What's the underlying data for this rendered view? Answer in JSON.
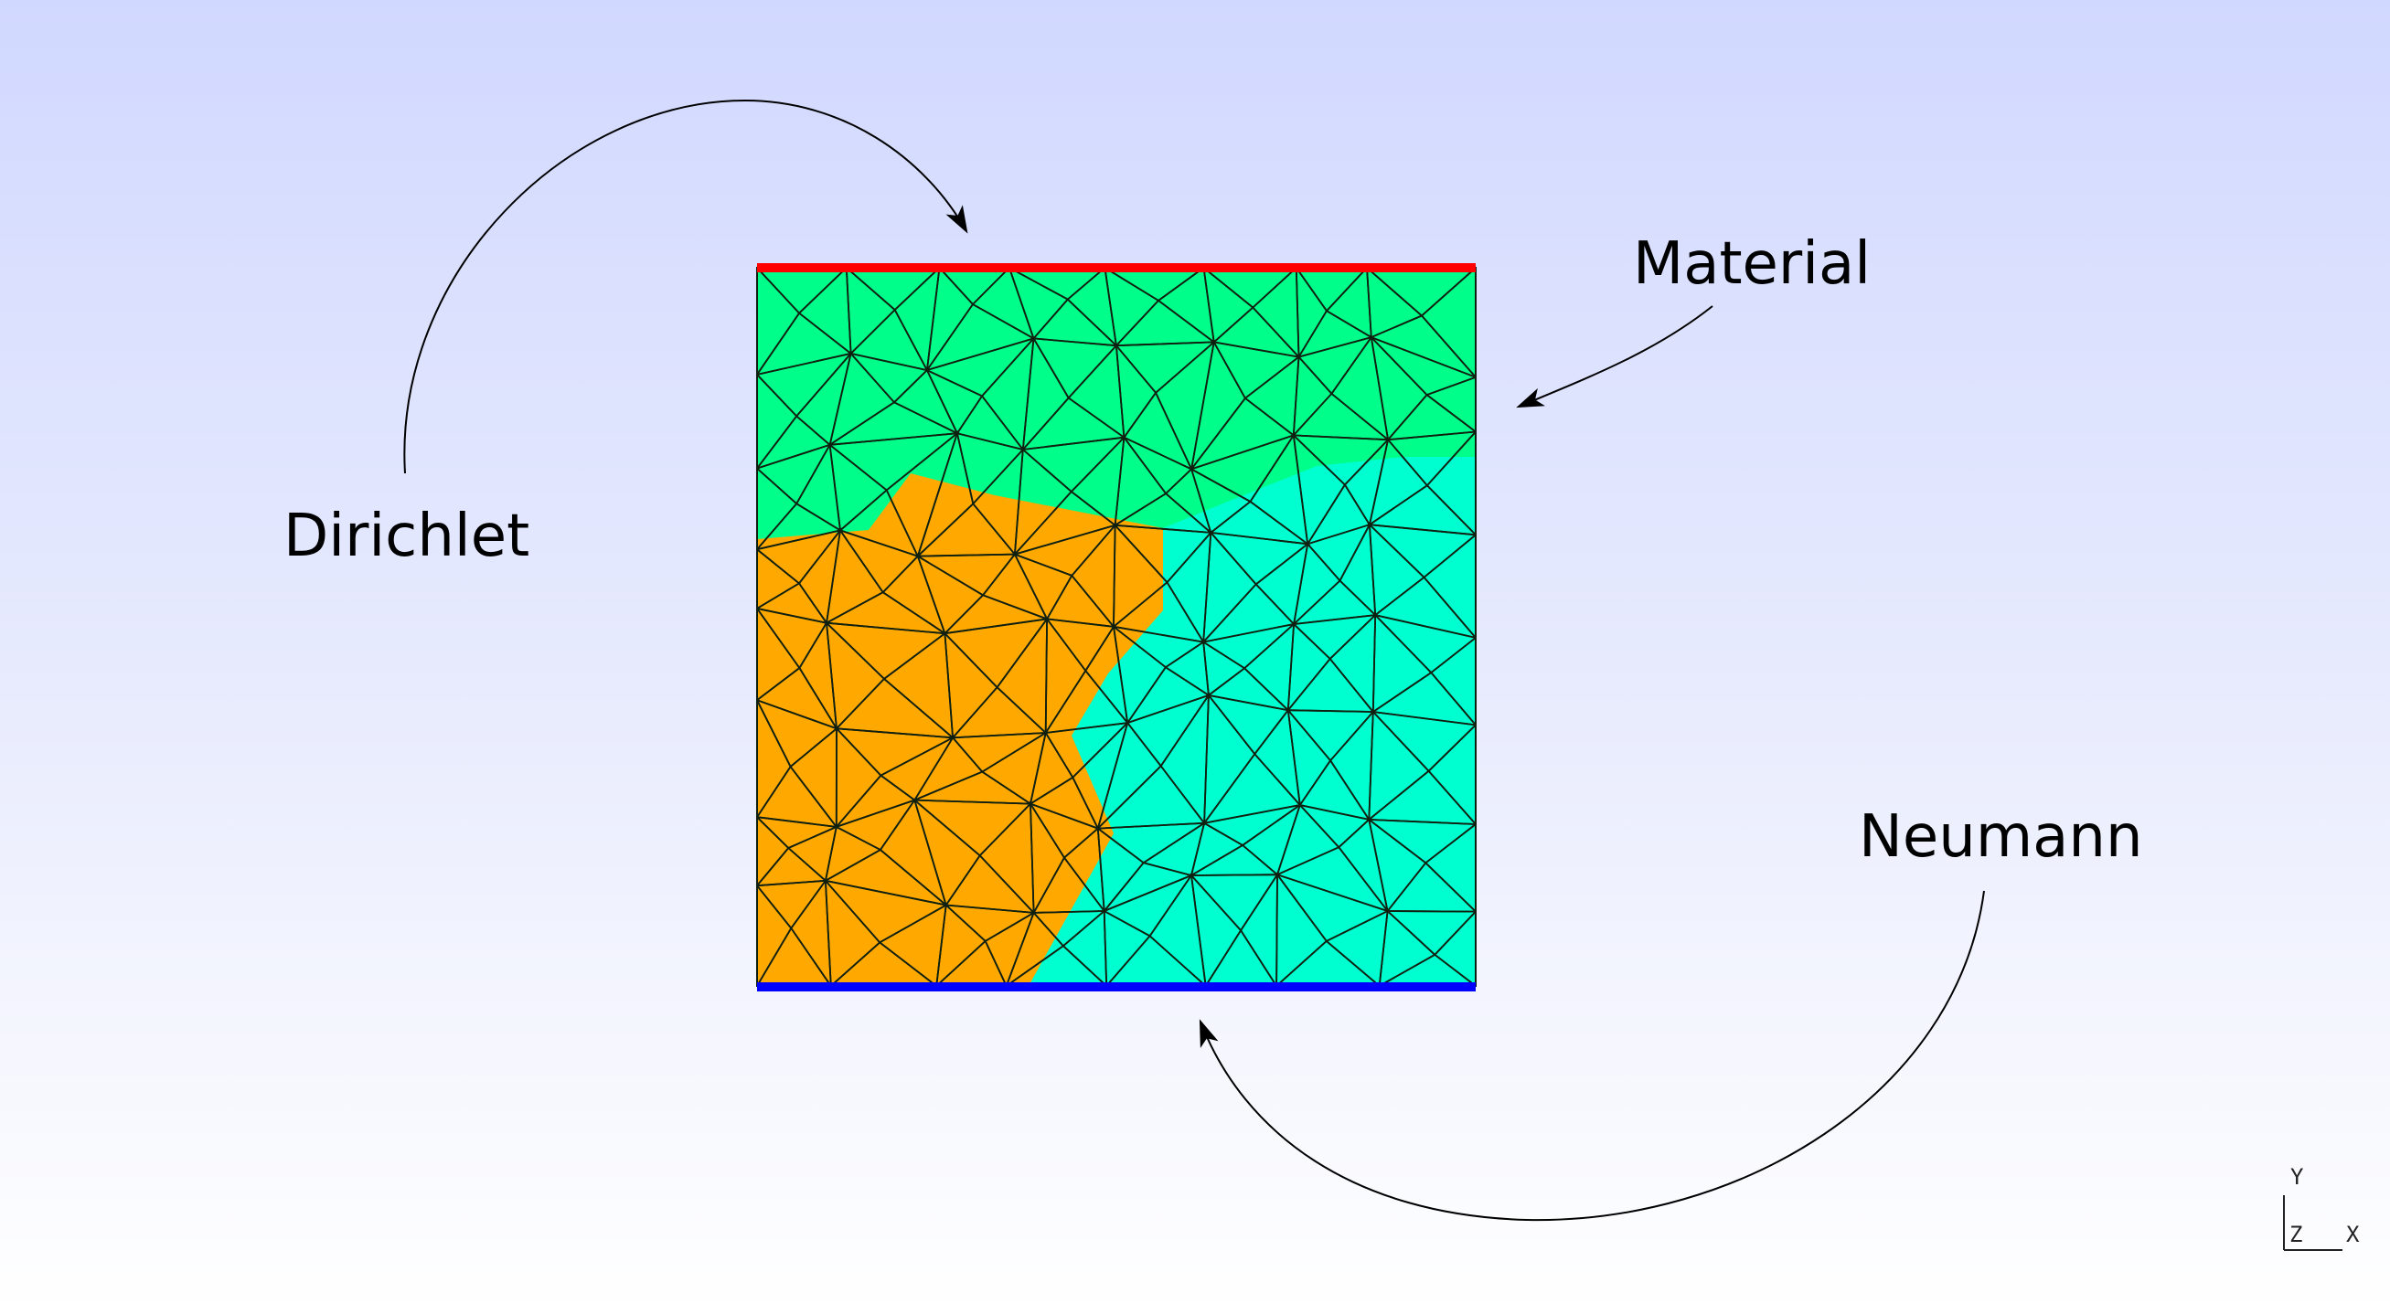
{
  "labels": {
    "dirichlet": "Dirichlet",
    "material": "Material",
    "neumann": "Neumann"
  },
  "axes": {
    "y": "Y",
    "z": "Z",
    "x": "X"
  },
  "colors": {
    "region_top": "#00ff8a",
    "region_left": "#ffa800",
    "region_right": "#00ffd0",
    "dirichlet_edge": "#ff0000",
    "neumann_edge": "#0000ff",
    "mesh_line": "#102010",
    "arrow": "#000000"
  }
}
